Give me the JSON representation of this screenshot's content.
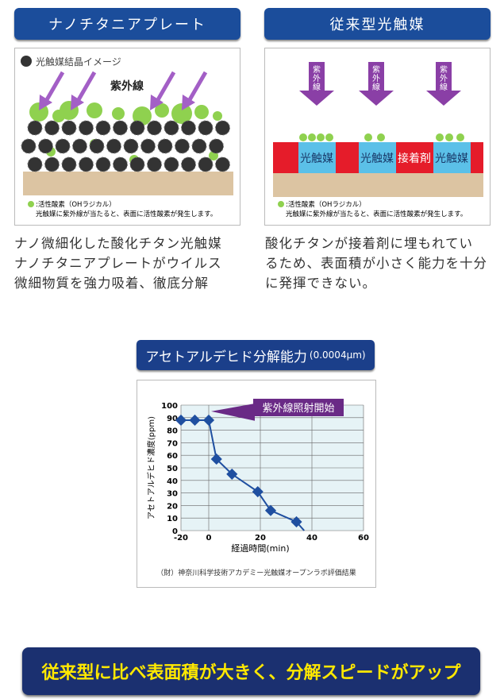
{
  "left": {
    "title": "ナノチタニアプレート",
    "legend_title": "光触媒結晶イメージ",
    "uv_label": "紫外線",
    "note_line1": ":活性酸素（OHラジカル）",
    "note_line2": "光触媒に紫外線が当たると、表面に活性酸素が発生します。",
    "desc": [
      "ナノ微細化した酸化チタン光触媒",
      "ナノチタニアプレートがウイルス",
      "微細物質を強力吸着、徹底分解"
    ]
  },
  "right": {
    "title": "従来型光触媒",
    "uv_label": "紫外線",
    "photocatalyst_label": "光触媒",
    "adhesive_label": "接着剤",
    "note_line1": ":活性酸素（OHラジカル）",
    "note_line2": "光触媒に紫外線が当たると、表面に活性酸素が発生します。",
    "desc": [
      "酸化チタンが接着剤に埋もれてい",
      "るため、表面積が小さく能力を十分",
      "に発揮できない。"
    ]
  },
  "chart_section": {
    "title": "アセトアルデヒド分解能力",
    "title_unit": "(0.0004μm)",
    "source": "（財）神奈川科学技術アカデミー光触媒オープンラボ評価結果"
  },
  "chart_data": {
    "type": "line",
    "xlabel": "経過時間(min)",
    "ylabel": "アセトアルデヒド濃度(ppm)",
    "xticks": [
      "-20",
      "0",
      "20",
      "40",
      "60"
    ],
    "yticks": [
      "0",
      "10",
      "20",
      "30",
      "40",
      "50",
      "60",
      "70",
      "80",
      "90",
      "100"
    ],
    "ylim": [
      0,
      100
    ],
    "xlim": [
      -20,
      60
    ],
    "grid": true,
    "annotation": "紫外線照射開始",
    "series": [
      {
        "x": [
          -20,
          -10,
          0,
          3,
          9,
          19,
          24,
          34,
          37
        ],
        "y": [
          88,
          88,
          88,
          57,
          45,
          31,
          16,
          7,
          0
        ],
        "markers": [
          true,
          true,
          true,
          true,
          true,
          true,
          true,
          true,
          false
        ]
      }
    ],
    "colors": {
      "line": "#1f4fa0",
      "plot_bg": "#e6f3f6",
      "annotation_bg": "#6a2a86"
    }
  },
  "banner": {
    "text": "従来型に比べ表面積が大きく、分解スピードがアップ"
  },
  "colors": {
    "header": "#1b4d9b",
    "banner_text": "#ffe800",
    "uv_arrow": "#a35fc6",
    "oh": "#8fd14f",
    "adhesive": "#e51c2a",
    "photocatalyst": "#5bc0e8",
    "substrate": "#dcc4a2"
  }
}
